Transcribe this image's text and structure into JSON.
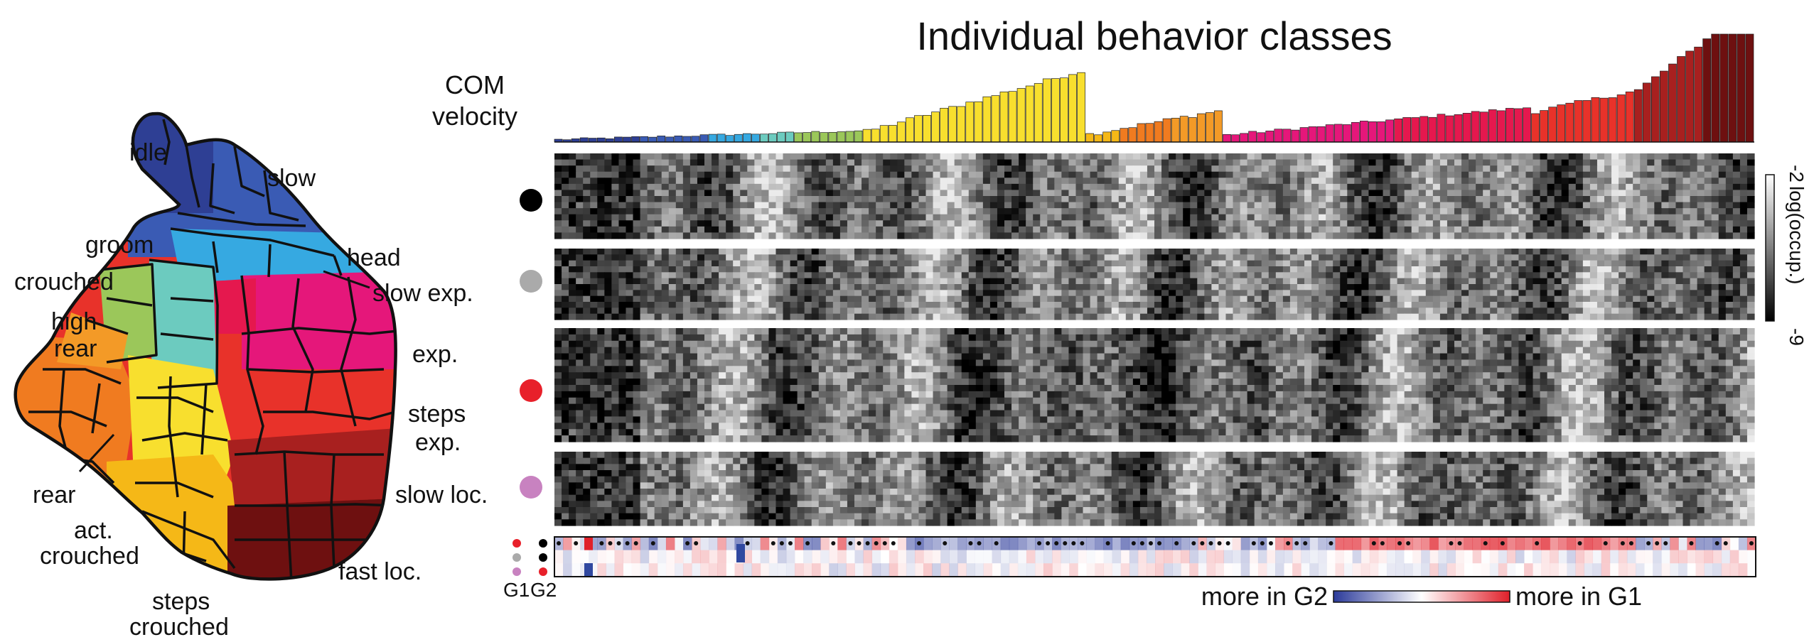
{
  "title": "Individual behavior classes",
  "velocity_label_line1": "COM",
  "velocity_label_line2": "velocity",
  "map_labels": {
    "idle": "idle",
    "slow": "slow",
    "groom": "groom",
    "head": "head",
    "crouched": "crouched",
    "slow_exp": "slow exp.",
    "high_line1": "high",
    "high_line2": "rear",
    "exp": "exp.",
    "steps_exp_line1": "steps",
    "steps_exp_line2": "exp.",
    "rear": "rear",
    "slow_loc": "slow loc.",
    "act_line1": "act.",
    "act_line2": "crouched",
    "fast_loc": "fast loc.",
    "steps_crouched_line1": "steps",
    "steps_crouched_line2": "crouched"
  },
  "colorbar": {
    "label": "log(occup.)",
    "max_tick": "-2",
    "min_tick": "-9"
  },
  "diff_legend": {
    "left": "more in G2",
    "right": "more in G1",
    "left_color": "#2b3a9a",
    "right_color": "#e0202a"
  },
  "group_labels": {
    "g1": "G1",
    "g2": "G2"
  },
  "colors": {
    "idle": "#2e3f94",
    "slow": "#3a5bb4",
    "head": "#36a9e1",
    "groom": "#6ccbbf",
    "crouched": "#9bc75a",
    "high_rear": "#f39a27",
    "rear": "#f07b20",
    "act_crouched": "#f5b817",
    "steps_crouched": "#f8df2e",
    "exp": "#e5177a",
    "slow_exp": "#e5184e",
    "steps_exp": "#e8322a",
    "slow_loc": "#a8201f",
    "fast_loc": "#6e1010",
    "group_black": "#000000",
    "group_gray": "#aaaaaa",
    "group_red": "#e8202a",
    "group_pink": "#c882c0"
  }
}
